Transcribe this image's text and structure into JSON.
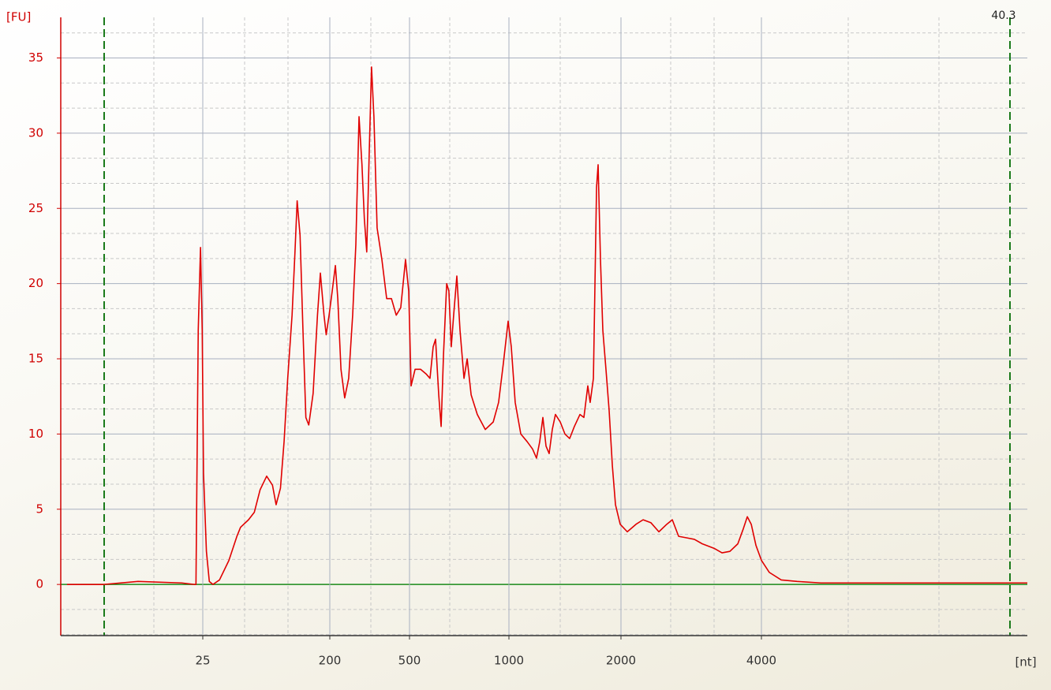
{
  "chart_data": {
    "type": "line",
    "y_axis_label": "[FU]",
    "x_axis_label": "[nt]",
    "marker_label": "40.3",
    "x": [
      1.1,
      7.6,
      13.6,
      21.3,
      23.5,
      23.8,
      24.2,
      24.6,
      24.9,
      26,
      30,
      34,
      39,
      48,
      61,
      72,
      77,
      88,
      96,
      104,
      113,
      121,
      126,
      132,
      137,
      142,
      148,
      152,
      155,
      159,
      163,
      167,
      171,
      177,
      183,
      187,
      192,
      195,
      199,
      209,
      221,
      230,
      242,
      256,
      271,
      286,
      298,
      310,
      321,
      330,
      339,
      348,
      357,
      366,
      378,
      396,
      414,
      432,
      450,
      467,
      485,
      497,
      508,
      528,
      556,
      583,
      603,
      619,
      631,
      647,
      659,
      671,
      687,
      698,
      710,
      722,
      738,
      754,
      774,
      790,
      810,
      841,
      881,
      921,
      948,
      972,
      996,
      1021,
      1056,
      1106,
      1162,
      1211,
      1246,
      1275,
      1303,
      1331,
      1359,
      1387,
      1415,
      1458,
      1500,
      1542,
      1584,
      1634,
      1669,
      1704,
      1725,
      1754,
      1782,
      1796,
      1817,
      1838,
      1866,
      1894,
      1923,
      1951,
      1993,
      2090,
      2214,
      2315,
      2427,
      2540,
      2652,
      2731,
      2821,
      2933,
      3045,
      3158,
      3326,
      3439,
      3551,
      3664,
      3742,
      3799,
      3855,
      3922,
      4000,
      4119,
      4298,
      4537,
      4896,
      5612,
      6806,
      7881,
      8000
    ],
    "values": [
      0,
      0,
      0.2,
      0.1,
      0,
      0,
      16.9,
      22.4,
      16.9,
      7.4,
      2.2,
      0.2,
      0,
      0.3,
      1.6,
      3.2,
      3.8,
      4.3,
      4.8,
      6.3,
      7.2,
      6.6,
      5.3,
      6.4,
      9.5,
      13.7,
      17.9,
      22.1,
      25.5,
      23.2,
      16.9,
      11.1,
      10.6,
      12.7,
      17.9,
      20.7,
      17.9,
      16.6,
      17.9,
      19.5,
      21.2,
      19.0,
      14.3,
      12.4,
      13.7,
      17.9,
      22.6,
      31.1,
      27.9,
      24.3,
      22.1,
      28.5,
      34.4,
      31.1,
      23.7,
      21.6,
      19.0,
      19.0,
      17.9,
      18.4,
      21.6,
      19.5,
      13.2,
      14.3,
      14.3,
      14.0,
      13.7,
      15.8,
      16.3,
      12.6,
      10.5,
      15.3,
      20.0,
      19.5,
      15.8,
      17.9,
      20.5,
      16.9,
      13.7,
      15.0,
      12.6,
      11.3,
      10.3,
      10.8,
      12.1,
      14.7,
      17.5,
      15.8,
      12.1,
      10.0,
      9.5,
      9.0,
      8.4,
      9.5,
      11.1,
      9.2,
      8.7,
      10.3,
      11.3,
      10.8,
      10.0,
      9.7,
      10.5,
      11.3,
      11.1,
      13.2,
      12.1,
      13.7,
      26.4,
      27.9,
      21.6,
      16.9,
      14.3,
      11.6,
      7.9,
      5.3,
      4.0,
      3.5,
      4.0,
      4.3,
      4.1,
      3.5,
      4.0,
      4.3,
      3.2,
      3.1,
      3.0,
      2.7,
      2.4,
      2.1,
      2.2,
      2.7,
      3.7,
      4.5,
      4.0,
      2.6,
      1.6,
      0.8,
      0.3,
      0.2,
      0.1,
      0.1,
      0.1,
      0.1,
      0.1
    ],
    "color": "#e00000",
    "xlim": [
      0,
      8000
    ],
    "xticks": [
      25,
      200,
      500,
      1000,
      2000,
      4000
    ],
    "ylim": [
      -3.4,
      37.7
    ],
    "yticks": [
      0,
      5,
      10,
      15,
      20,
      25,
      30,
      35
    ],
    "grid": true
  }
}
